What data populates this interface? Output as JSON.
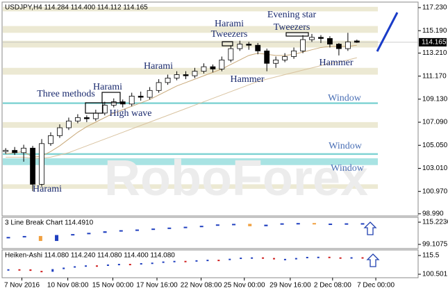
{
  "chart_data": {
    "type": "candlestick",
    "header": "USDJPY,H4  114.284 114.400 114.112 114.165",
    "watermark": "RoboForex",
    "last_price": 114.165,
    "open": [
      104.5,
      104.6,
      104.4,
      104.8,
      101.6,
      105.2,
      105.9,
      106.6,
      107.2,
      107.5,
      107.4,
      107.9,
      108.6,
      108.9,
      108.7,
      109.4,
      109.3,
      109.9,
      110.6,
      111.0,
      111.3,
      111.2,
      111.6,
      112.0,
      111.8,
      112.6,
      113.6,
      114.0,
      113.9,
      113.4,
      112.3,
      112.6,
      112.9,
      113.4,
      114.4,
      114.6,
      114.5,
      114.0,
      113.6,
      114.284
    ],
    "high": [
      104.8,
      104.9,
      105.1,
      105.0,
      105.6,
      106.2,
      106.9,
      107.5,
      107.8,
      107.7,
      108.2,
      108.9,
      109.2,
      109.1,
      109.7,
      109.8,
      110.2,
      110.9,
      111.3,
      111.6,
      111.6,
      111.9,
      112.3,
      112.2,
      112.9,
      113.9,
      114.3,
      114.2,
      114.1,
      113.6,
      112.9,
      113.2,
      113.7,
      114.8,
      114.9,
      114.8,
      114.7,
      114.1,
      115.0,
      114.4
    ],
    "low": [
      104.3,
      104.2,
      103.6,
      101.0,
      101.4,
      105.0,
      105.7,
      106.4,
      107.0,
      107.1,
      107.2,
      107.7,
      108.4,
      108.4,
      108.5,
      109.0,
      109.1,
      109.7,
      110.4,
      110.8,
      110.9,
      111.0,
      111.4,
      111.5,
      111.6,
      112.4,
      113.4,
      113.5,
      113.1,
      111.6,
      111.9,
      112.4,
      112.7,
      113.2,
      114.2,
      114.1,
      113.7,
      113.0,
      113.4,
      114.112
    ],
    "close": [
      104.6,
      104.4,
      104.8,
      101.6,
      105.2,
      105.9,
      106.6,
      107.2,
      107.5,
      107.4,
      107.9,
      108.6,
      108.9,
      108.7,
      109.4,
      109.3,
      109.9,
      110.6,
      111.0,
      111.3,
      111.2,
      111.6,
      112.0,
      111.8,
      112.6,
      113.6,
      114.0,
      113.9,
      113.4,
      112.3,
      112.6,
      112.9,
      113.4,
      114.4,
      114.6,
      114.5,
      114.0,
      113.6,
      114.2,
      114.165
    ],
    "moving_averages": [
      {
        "color": "#c8a878",
        "values": [
          104.3,
          104.4,
          104.5,
          104.0,
          104.1,
          104.5,
          105.0,
          105.6,
          106.2,
          106.7,
          107.1,
          107.5,
          107.9,
          108.2,
          108.5,
          108.8,
          109.1,
          109.5,
          109.9,
          110.3,
          110.6,
          110.9,
          111.2,
          111.5,
          111.8,
          112.2,
          112.6,
          113.0,
          113.2,
          113.1,
          113.0,
          113.0,
          113.1,
          113.3,
          113.5,
          113.7,
          113.8,
          113.8,
          113.8,
          113.9
        ]
      },
      {
        "color": "#d9c3a0",
        "values": [
          104.0,
          104.0,
          104.0,
          103.9,
          103.9,
          104.0,
          104.2,
          104.4,
          104.7,
          105.0,
          105.3,
          105.6,
          105.9,
          106.2,
          106.5,
          106.8,
          107.1,
          107.4,
          107.7,
          108.0,
          108.3,
          108.6,
          108.9,
          109.2,
          109.5,
          109.8,
          110.1,
          110.4,
          110.7,
          110.9,
          111.1,
          111.3,
          111.5,
          111.7,
          111.9,
          112.1,
          112.3,
          112.4,
          112.6,
          112.8
        ]
      }
    ],
    "zones": [
      {
        "low": 116.9,
        "high": 117.3,
        "color": "#ece9d3"
      },
      {
        "low": 115.0,
        "high": 115.6,
        "color": "#ece9d3"
      },
      {
        "low": 113.7,
        "high": 114.3,
        "color": "#ece9d3"
      },
      {
        "low": 111.3,
        "high": 111.9,
        "color": "#ece9d3"
      },
      {
        "low": 108.7,
        "high": 108.85,
        "color": "#7fd3d3"
      },
      {
        "low": 106.6,
        "high": 107.1,
        "color": "#ece9d3"
      },
      {
        "low": 104.2,
        "high": 104.35,
        "color": "#7fd3d3"
      },
      {
        "low": 103.3,
        "high": 103.9,
        "color": "#a8e3e3"
      },
      {
        "low": 101.2,
        "high": 101.6,
        "color": "#ece9d3"
      }
    ],
    "annotations": [
      "Harami",
      "Tweezers",
      "Evening star",
      "Tweezers",
      "Harami",
      "Three methods",
      "Harami",
      "High wave",
      "Hammer",
      "Hammer",
      "Window",
      "Window",
      "Window",
      "Harami"
    ],
    "xlim": [
      -0.4,
      45.8
    ],
    "xticks": [
      {
        "value": 1.8,
        "label": "7 Nov 2016"
      },
      {
        "value": 6.9,
        "label": "10 Nov 08:00"
      },
      {
        "value": 11.9,
        "label": "15 Nov 00:00"
      },
      {
        "value": 16.8,
        "label": "17 Nov 16:00"
      },
      {
        "value": 21.7,
        "label": "22 Nov 08:00"
      },
      {
        "value": 26.5,
        "label": "25 Nov 00:00"
      },
      {
        "value": 31.6,
        "label": "29 Nov 16:00"
      },
      {
        "value": 36.3,
        "label": "2 Dec 08:00"
      },
      {
        "value": 41.1,
        "label": "7 Dec 00:00"
      }
    ],
    "ylim": [
      98.8,
      117.72
    ],
    "yticks": [
      {
        "value": 117.23,
        "label": "117.230"
      },
      {
        "value": 115.19,
        "label": "115.190"
      },
      {
        "value": 113.21,
        "label": "113.210"
      },
      {
        "value": 111.17,
        "label": "111.170"
      },
      {
        "value": 109.13,
        "label": "109.130"
      },
      {
        "value": 107.09,
        "label": "107.090"
      },
      {
        "value": 105.05,
        "label": "105.050"
      },
      {
        "value": 103.01,
        "label": "103.010"
      },
      {
        "value": 100.97,
        "label": "100.970"
      },
      {
        "value": 98.99,
        "label": "98.990"
      }
    ],
    "line_break": {
      "title": "3 Line Break Chart 114.4910",
      "ylim": [
        96.09,
        118.75
      ],
      "yticks": [
        115.2236,
        99.1075
      ],
      "values": [
        104.5,
        105.2,
        101.6,
        105.9,
        106.6,
        107.5,
        108.6,
        109.4,
        109.9,
        110.6,
        111.3,
        111.9,
        112.6,
        113.6,
        114.0,
        112.3,
        113.4,
        114.4,
        114.6,
        113.6,
        114.2,
        114.4,
        114.491
      ],
      "up_color": "#1f3fbf",
      "down_color": "#f0a040"
    },
    "heiken_ashi": {
      "title": "Heiken-Ashi 114.080 114.240 114.080 114.400 114.080",
      "ylim": [
        97.72,
        119.94
      ],
      "yticks": [
        115.5,
        100.501
      ],
      "values": [
        104.5,
        104.4,
        103.2,
        102.5,
        104.6,
        105.8,
        106.9,
        107.6,
        107.4,
        108.3,
        108.8,
        108.6,
        109.4,
        109.8,
        110.7,
        111.2,
        111.1,
        111.7,
        112.1,
        111.9,
        112.9,
        113.8,
        114.0,
        113.5,
        112.5,
        112.8,
        113.5,
        114.4,
        114.5,
        114.0,
        113.7,
        114.1,
        114.08
      ],
      "up_color": "#1f3fbf",
      "down_color": "#d02020"
    }
  }
}
